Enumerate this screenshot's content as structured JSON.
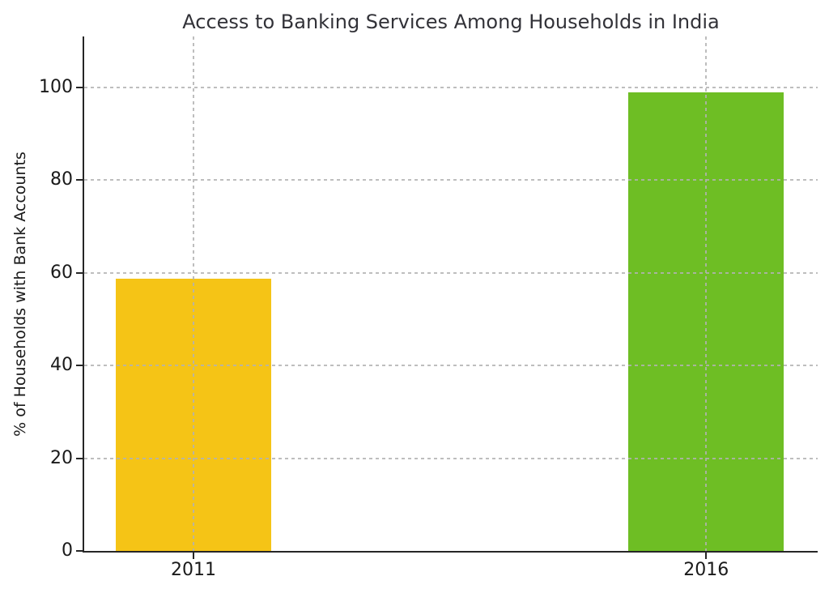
{
  "chart_data": {
    "type": "bar",
    "title": "Access to Banking Services Among Households in India",
    "xlabel": "",
    "ylabel": "% of Households with Bank Accounts",
    "categories": [
      "2011",
      "2016"
    ],
    "values": [
      58.7,
      99
    ],
    "bar_colors": [
      "#F5C416",
      "#6EBE24"
    ],
    "yticks": [
      0,
      20,
      40,
      60,
      80,
      100
    ],
    "ylim": [
      0,
      111
    ],
    "grid": "dashed light-gray gridlines, horizontal at y-ticks and vertical at category centers, drawn above bars",
    "legend_position": "none",
    "axis_color": "#262626",
    "background_color": "#ffffff"
  }
}
